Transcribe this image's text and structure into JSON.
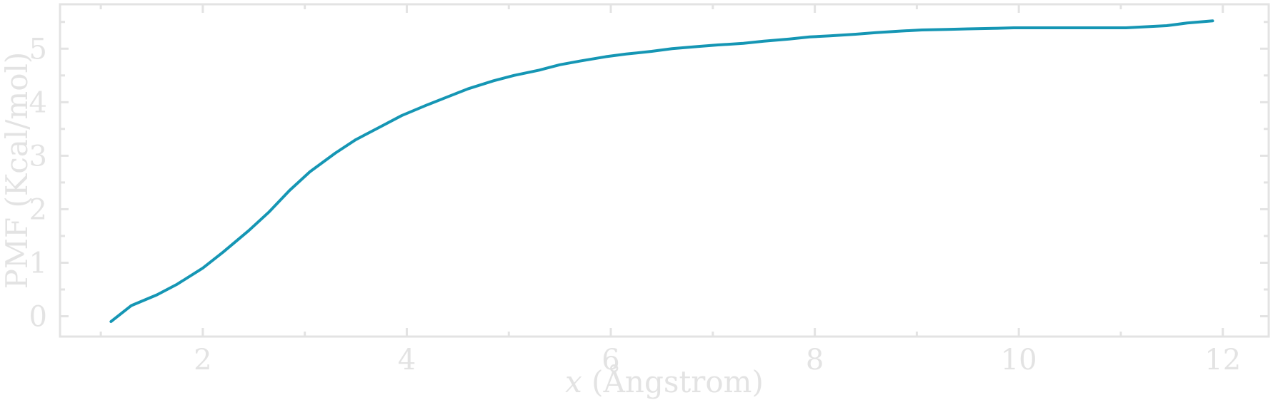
{
  "chart_data": {
    "type": "line",
    "title": "",
    "xlabel_var": "x",
    "xlabel_rest": " (Ångstrom)",
    "ylabel": "PMF (Kcal/mol)",
    "xlim": [
      0.6,
      12.45
    ],
    "ylim": [
      -0.38,
      5.83
    ],
    "x_ticks": [
      2,
      4,
      6,
      8,
      10,
      12
    ],
    "x_tick_labels": [
      "2",
      "4",
      "6",
      "8",
      "10",
      "12"
    ],
    "x_minor_ticks": [
      1,
      3,
      5,
      7,
      9,
      11
    ],
    "y_ticks": [
      0,
      1,
      2,
      3,
      4,
      5
    ],
    "y_tick_labels": [
      "0",
      "1",
      "2",
      "3",
      "4",
      "5"
    ],
    "y_minor_ticks": [
      0.5,
      1.5,
      2.5,
      3.5,
      4.5,
      5.5
    ],
    "grid": false,
    "series": [
      {
        "color": "#1596b4",
        "x": [
          1.1,
          1.3,
          1.55,
          1.75,
          2.0,
          2.2,
          2.45,
          2.65,
          2.85,
          3.05,
          3.3,
          3.5,
          3.75,
          3.95,
          4.2,
          4.4,
          4.6,
          4.85,
          5.05,
          5.3,
          5.5,
          5.7,
          5.95,
          6.15,
          6.4,
          6.6,
          6.85,
          7.05,
          7.3,
          7.5,
          7.75,
          7.95,
          8.15,
          8.4,
          8.6,
          8.85,
          9.05,
          9.3,
          9.5,
          9.75,
          9.95,
          10.15,
          10.4,
          10.6,
          10.8,
          11.05,
          11.25,
          11.45,
          11.65,
          11.9
        ],
        "y": [
          -0.1,
          0.2,
          0.4,
          0.6,
          0.9,
          1.2,
          1.6,
          1.95,
          2.35,
          2.7,
          3.05,
          3.3,
          3.55,
          3.75,
          3.95,
          4.1,
          4.25,
          4.4,
          4.5,
          4.6,
          4.7,
          4.77,
          4.85,
          4.9,
          4.95,
          5.0,
          5.04,
          5.07,
          5.1,
          5.14,
          5.18,
          5.22,
          5.24,
          5.27,
          5.3,
          5.33,
          5.35,
          5.36,
          5.37,
          5.38,
          5.39,
          5.39,
          5.39,
          5.39,
          5.39,
          5.39,
          5.41,
          5.43,
          5.48,
          5.52
        ]
      }
    ]
  }
}
